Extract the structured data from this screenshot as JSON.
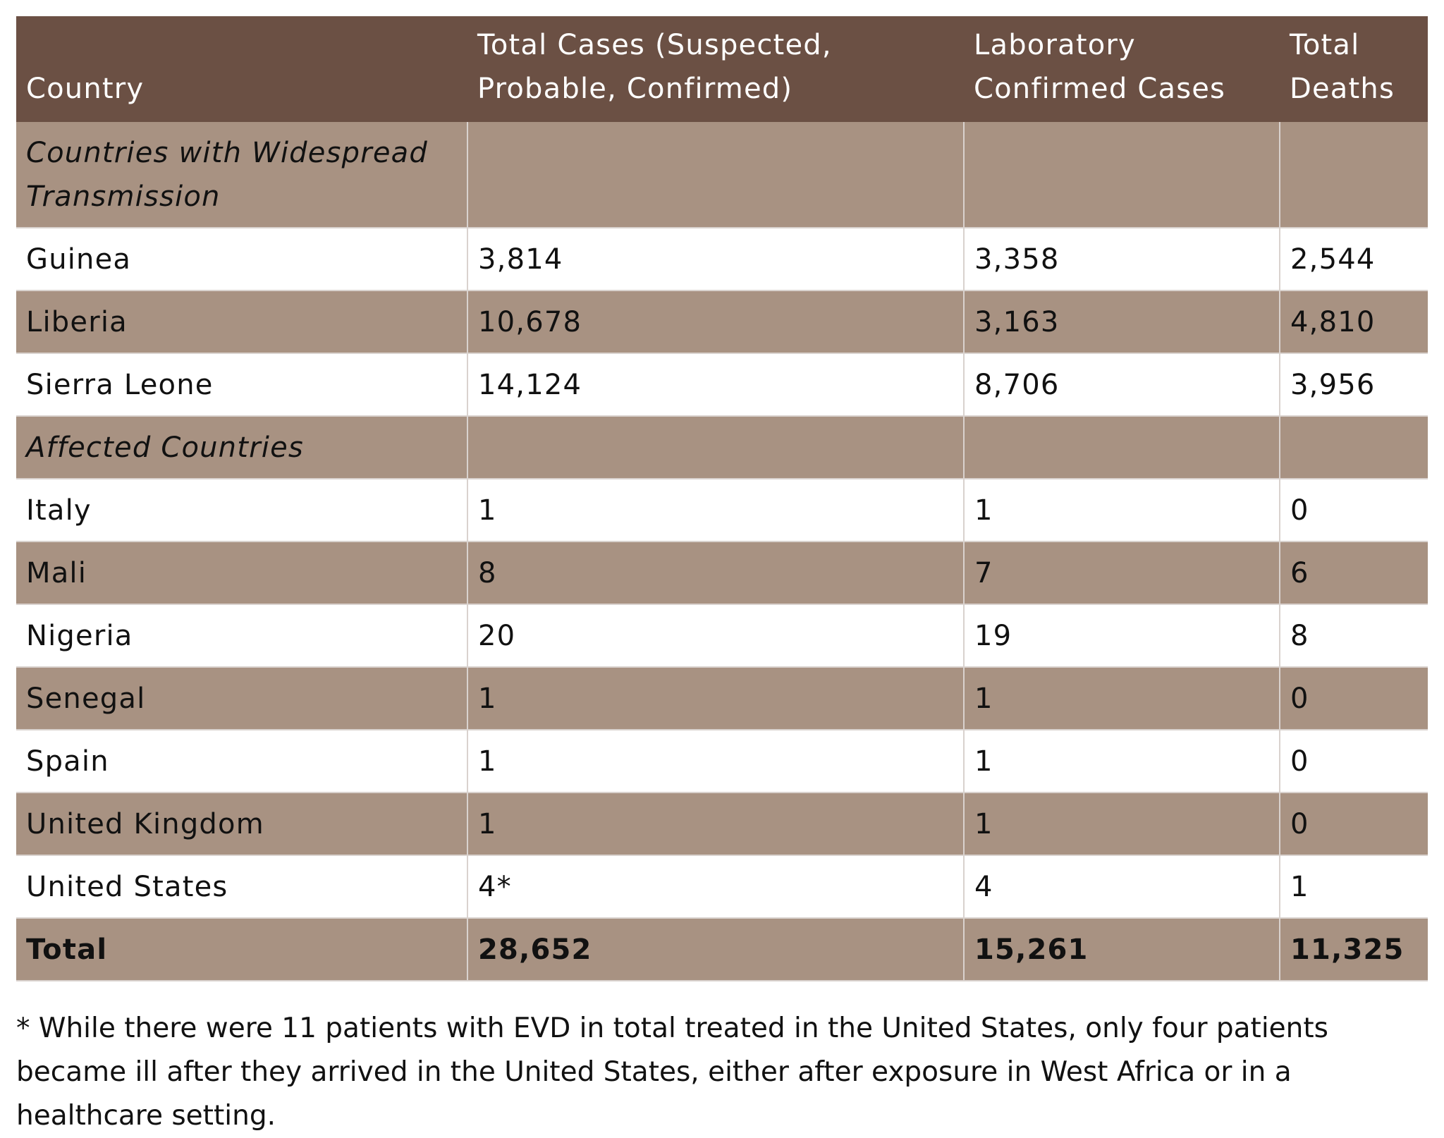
{
  "headers": [
    "Country",
    "Total Cases (Suspected, Probable, Confirmed)",
    "Laboratory Confirmed Cases",
    "Total Deaths"
  ],
  "groups": {
    "widespread": "Countries with Widespread Transmission",
    "affected": "Affected Countries"
  },
  "rows": [
    {
      "country": "Guinea",
      "total": "3,814",
      "lab": "3,358",
      "deaths": "2,544"
    },
    {
      "country": "Liberia",
      "total": "10,678",
      "lab": "3,163",
      "deaths": "4,810"
    },
    {
      "country": "Sierra Leone",
      "total": "14,124",
      "lab": "8,706",
      "deaths": "3,956"
    },
    {
      "country": "Italy",
      "total": "1",
      "lab": "1",
      "deaths": "0"
    },
    {
      "country": "Mali",
      "total": "8",
      "lab": "7",
      "deaths": "6"
    },
    {
      "country": "Nigeria",
      "total": "20",
      "lab": "19",
      "deaths": "8"
    },
    {
      "country": "Senegal",
      "total": "1",
      "lab": "1",
      "deaths": "0"
    },
    {
      "country": "Spain",
      "total": "1",
      "lab": "1",
      "deaths": "0"
    },
    {
      "country": "United Kingdom",
      "total": "1",
      "lab": "1",
      "deaths": "0"
    },
    {
      "country": "United States",
      "total": "4*",
      "lab": "4",
      "deaths": "1"
    }
  ],
  "total_row": {
    "country": "Total",
    "total": "28,652",
    "lab": "15,261",
    "deaths": "11,325"
  },
  "footnote": "* While there were 11 patients with EVD in total treated in the United States, only four patients became ill after they arrived in the United States, either after exposure in West Africa or in a healthcare setting.",
  "colors": {
    "header_bg": "#6b5044",
    "shaded_row": "#a89282",
    "white_row": "#ffffff"
  }
}
